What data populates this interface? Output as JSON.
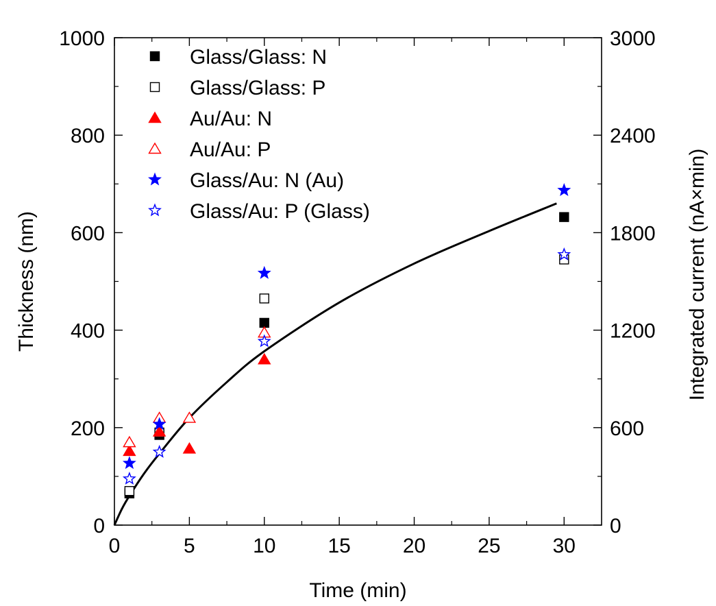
{
  "chart_data": {
    "type": "scatter",
    "xlabel": "Time (min)",
    "ylabel": "Thickness (nm)",
    "y2label": "Integrated current (nA×min)",
    "xlim": [
      0,
      32.5
    ],
    "ylim": [
      0,
      1000
    ],
    "y2lim": [
      0,
      3000
    ],
    "x_ticks": [
      0,
      5,
      10,
      15,
      20,
      25,
      30
    ],
    "y_ticks": [
      0,
      200,
      400,
      600,
      800,
      1000
    ],
    "y2_ticks": [
      0,
      600,
      1200,
      1800,
      2400,
      3000
    ],
    "grid": false,
    "legend_position": "top-left",
    "series": [
      {
        "name": "Glass/Glass: N",
        "marker": "square-filled",
        "color": "#000000",
        "x": [
          1,
          3,
          10,
          30
        ],
        "y": [
          65,
          185,
          415,
          632
        ]
      },
      {
        "name": "Glass/Glass: P",
        "marker": "square-open",
        "color": "#000000",
        "x": [
          1,
          3,
          10,
          30
        ],
        "y": [
          70,
          190,
          465,
          545
        ]
      },
      {
        "name": "Au/Au: N",
        "marker": "triangle-filled",
        "color": "#ff0000",
        "x": [
          1,
          3,
          5,
          10
        ],
        "y": [
          152,
          192,
          157,
          340
        ]
      },
      {
        "name": "Au/Au: P",
        "marker": "triangle-open",
        "color": "#ff0000",
        "x": [
          1,
          3,
          5,
          10
        ],
        "y": [
          170,
          220,
          220,
          395
        ]
      },
      {
        "name": "Glass/Au: N (Au)",
        "marker": "star-filled",
        "color": "#0000ff",
        "x": [
          1,
          3,
          10,
          30
        ],
        "y": [
          127,
          207,
          517,
          687
        ]
      },
      {
        "name": "Glass/Au: P (Glass)",
        "marker": "star-open",
        "color": "#0000ff",
        "x": [
          1,
          3,
          10,
          30
        ],
        "y": [
          95,
          150,
          377,
          555
        ]
      }
    ],
    "curve": {
      "axis": "y2",
      "color": "#000000",
      "x": [
        0,
        0.5,
        1,
        2,
        3,
        5,
        7.5,
        10,
        15,
        20,
        25,
        29.5
      ],
      "y2": [
        0,
        100,
        180,
        320,
        440,
        660,
        880,
        1070,
        1370,
        1610,
        1810,
        1980
      ]
    }
  }
}
